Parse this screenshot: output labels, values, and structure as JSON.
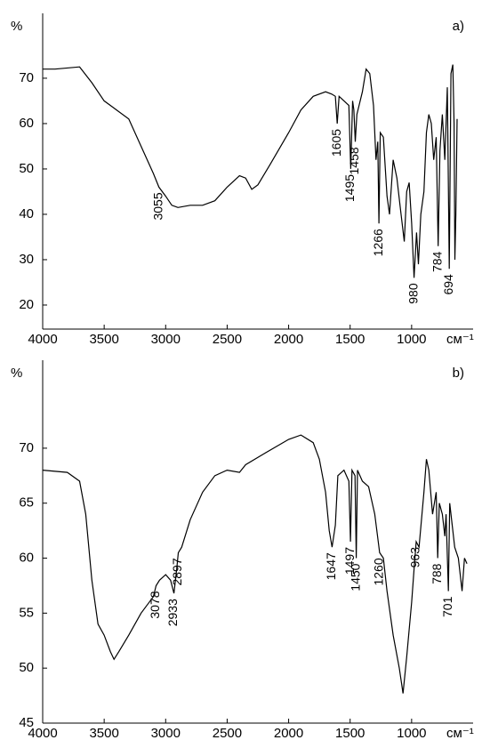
{
  "chart_data": [
    {
      "type": "line",
      "panel_label": "a)",
      "ylabel": "%",
      "xlabel": "см⁻¹",
      "xlim": [
        4000,
        500
      ],
      "xticks": [
        4000,
        3500,
        3000,
        2500,
        2000,
        1500,
        1000
      ],
      "ylim": [
        14.7,
        84.3
      ],
      "yticks": [
        20,
        30,
        40,
        50,
        60,
        70
      ],
      "series": [
        {
          "color": "#000000",
          "x": [
            4000,
            3900,
            3700,
            3600,
            3500,
            3400,
            3300,
            3200,
            3100,
            3055,
            3000,
            2950,
            2900,
            2800,
            2700,
            2600,
            2500,
            2400,
            2350,
            2300,
            2250,
            2150,
            2000,
            1900,
            1800,
            1700,
            1650,
            1620,
            1605,
            1590,
            1550,
            1510,
            1495,
            1480,
            1470,
            1458,
            1445,
            1400,
            1370,
            1340,
            1310,
            1290,
            1275,
            1266,
            1255,
            1230,
            1200,
            1180,
            1150,
            1120,
            1090,
            1060,
            1040,
            1020,
            1000,
            980,
            960,
            945,
            925,
            900,
            880,
            860,
            840,
            820,
            800,
            784,
            770,
            750,
            730,
            710,
            694,
            680,
            665,
            655,
            648,
            640,
            630
          ],
          "values": [
            72,
            72,
            72.5,
            69,
            65,
            63,
            61,
            55,
            49,
            46,
            44,
            42,
            41.5,
            42,
            42,
            43,
            46,
            48.5,
            48,
            45.5,
            46.5,
            51,
            58,
            63,
            66,
            67,
            66.5,
            66,
            60,
            66,
            65,
            64,
            50,
            65,
            63,
            56,
            62,
            67,
            72,
            71,
            64,
            52,
            56,
            38,
            58,
            57,
            44,
            40,
            52,
            48,
            41,
            34,
            45,
            47,
            38,
            26,
            36,
            29,
            40,
            45,
            58,
            62,
            60,
            52,
            57,
            33,
            54,
            62,
            52,
            68,
            28,
            71,
            73,
            60,
            30,
            40,
            61
          ]
        }
      ],
      "annotations": [
        3055,
        1605,
        1495,
        1458,
        1266,
        980,
        784,
        694
      ]
    },
    {
      "type": "line",
      "panel_label": "b)",
      "ylabel": "%",
      "xlabel": "см⁻¹",
      "xlim": [
        4000,
        500
      ],
      "xticks": [
        4000,
        3500,
        3000,
        2500,
        2000,
        1500,
        1000
      ],
      "ylim": [
        45,
        78
      ],
      "yticks": [
        45,
        50,
        55,
        60,
        65,
        70
      ],
      "series": [
        {
          "color": "#000000",
          "x": [
            4000,
            3800,
            3700,
            3650,
            3600,
            3550,
            3500,
            3450,
            3420,
            3380,
            3300,
            3200,
            3100,
            3078,
            3050,
            3000,
            2960,
            2933,
            2910,
            2897,
            2870,
            2800,
            2700,
            2600,
            2500,
            2400,
            2350,
            2200,
            2000,
            1900,
            1800,
            1750,
            1700,
            1670,
            1647,
            1620,
            1600,
            1550,
            1510,
            1497,
            1485,
            1460,
            1450,
            1440,
            1400,
            1350,
            1300,
            1260,
            1230,
            1200,
            1150,
            1100,
            1070,
            1040,
            1000,
            980,
            963,
            940,
            900,
            880,
            860,
            830,
            800,
            788,
            775,
            750,
            730,
            720,
            701,
            690,
            670,
            650,
            620,
            590,
            570,
            550
          ],
          "values": [
            68,
            67.8,
            67,
            64,
            58,
            54,
            53,
            51.5,
            50.8,
            51.5,
            53,
            55,
            56.5,
            57.5,
            58,
            58.5,
            58,
            56.8,
            59,
            60.5,
            61,
            63.5,
            66,
            67.5,
            68,
            67.8,
            68.5,
            69.5,
            70.8,
            71.2,
            70.5,
            69,
            66,
            62.5,
            61,
            63,
            67.5,
            68,
            67,
            61.5,
            68,
            67.5,
            60,
            68,
            67,
            66.5,
            64,
            60.5,
            60,
            57,
            53,
            50,
            47.7,
            51,
            56,
            59,
            61.5,
            61,
            66,
            69,
            68,
            64,
            66,
            60,
            65,
            64,
            62,
            64,
            57,
            65,
            63,
            61,
            60,
            57,
            60,
            59.5
          ]
        }
      ],
      "annotations": [
        3078,
        2933,
        2897,
        1647,
        1497,
        1450,
        1260,
        963,
        788,
        701
      ]
    }
  ]
}
